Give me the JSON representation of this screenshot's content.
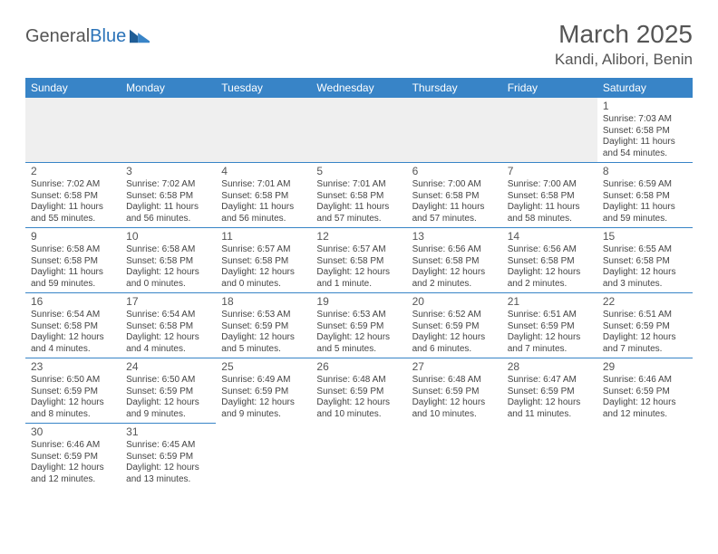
{
  "logo": {
    "text_a": "General",
    "text_b": "Blue"
  },
  "header": {
    "month_title": "March 2025",
    "location": "Kandi, Alibori, Benin"
  },
  "colors": {
    "header_bg": "#3884c7",
    "header_text": "#ffffff",
    "cell_border": "#3884c7",
    "blank_bg": "#efefef",
    "body_text": "#444444",
    "title_text": "#555555",
    "logo_blue": "#2b73b8"
  },
  "weekdays": [
    "Sunday",
    "Monday",
    "Tuesday",
    "Wednesday",
    "Thursday",
    "Friday",
    "Saturday"
  ],
  "weeks": [
    [
      null,
      null,
      null,
      null,
      null,
      null,
      {
        "n": "1",
        "sunrise": "Sunrise: 7:03 AM",
        "sunset": "Sunset: 6:58 PM",
        "daylight": "Daylight: 11 hours and 54 minutes."
      }
    ],
    [
      {
        "n": "2",
        "sunrise": "Sunrise: 7:02 AM",
        "sunset": "Sunset: 6:58 PM",
        "daylight": "Daylight: 11 hours and 55 minutes."
      },
      {
        "n": "3",
        "sunrise": "Sunrise: 7:02 AM",
        "sunset": "Sunset: 6:58 PM",
        "daylight": "Daylight: 11 hours and 56 minutes."
      },
      {
        "n": "4",
        "sunrise": "Sunrise: 7:01 AM",
        "sunset": "Sunset: 6:58 PM",
        "daylight": "Daylight: 11 hours and 56 minutes."
      },
      {
        "n": "5",
        "sunrise": "Sunrise: 7:01 AM",
        "sunset": "Sunset: 6:58 PM",
        "daylight": "Daylight: 11 hours and 57 minutes."
      },
      {
        "n": "6",
        "sunrise": "Sunrise: 7:00 AM",
        "sunset": "Sunset: 6:58 PM",
        "daylight": "Daylight: 11 hours and 57 minutes."
      },
      {
        "n": "7",
        "sunrise": "Sunrise: 7:00 AM",
        "sunset": "Sunset: 6:58 PM",
        "daylight": "Daylight: 11 hours and 58 minutes."
      },
      {
        "n": "8",
        "sunrise": "Sunrise: 6:59 AM",
        "sunset": "Sunset: 6:58 PM",
        "daylight": "Daylight: 11 hours and 59 minutes."
      }
    ],
    [
      {
        "n": "9",
        "sunrise": "Sunrise: 6:58 AM",
        "sunset": "Sunset: 6:58 PM",
        "daylight": "Daylight: 11 hours and 59 minutes."
      },
      {
        "n": "10",
        "sunrise": "Sunrise: 6:58 AM",
        "sunset": "Sunset: 6:58 PM",
        "daylight": "Daylight: 12 hours and 0 minutes."
      },
      {
        "n": "11",
        "sunrise": "Sunrise: 6:57 AM",
        "sunset": "Sunset: 6:58 PM",
        "daylight": "Daylight: 12 hours and 0 minutes."
      },
      {
        "n": "12",
        "sunrise": "Sunrise: 6:57 AM",
        "sunset": "Sunset: 6:58 PM",
        "daylight": "Daylight: 12 hours and 1 minute."
      },
      {
        "n": "13",
        "sunrise": "Sunrise: 6:56 AM",
        "sunset": "Sunset: 6:58 PM",
        "daylight": "Daylight: 12 hours and 2 minutes."
      },
      {
        "n": "14",
        "sunrise": "Sunrise: 6:56 AM",
        "sunset": "Sunset: 6:58 PM",
        "daylight": "Daylight: 12 hours and 2 minutes."
      },
      {
        "n": "15",
        "sunrise": "Sunrise: 6:55 AM",
        "sunset": "Sunset: 6:58 PM",
        "daylight": "Daylight: 12 hours and 3 minutes."
      }
    ],
    [
      {
        "n": "16",
        "sunrise": "Sunrise: 6:54 AM",
        "sunset": "Sunset: 6:58 PM",
        "daylight": "Daylight: 12 hours and 4 minutes."
      },
      {
        "n": "17",
        "sunrise": "Sunrise: 6:54 AM",
        "sunset": "Sunset: 6:58 PM",
        "daylight": "Daylight: 12 hours and 4 minutes."
      },
      {
        "n": "18",
        "sunrise": "Sunrise: 6:53 AM",
        "sunset": "Sunset: 6:59 PM",
        "daylight": "Daylight: 12 hours and 5 minutes."
      },
      {
        "n": "19",
        "sunrise": "Sunrise: 6:53 AM",
        "sunset": "Sunset: 6:59 PM",
        "daylight": "Daylight: 12 hours and 5 minutes."
      },
      {
        "n": "20",
        "sunrise": "Sunrise: 6:52 AM",
        "sunset": "Sunset: 6:59 PM",
        "daylight": "Daylight: 12 hours and 6 minutes."
      },
      {
        "n": "21",
        "sunrise": "Sunrise: 6:51 AM",
        "sunset": "Sunset: 6:59 PM",
        "daylight": "Daylight: 12 hours and 7 minutes."
      },
      {
        "n": "22",
        "sunrise": "Sunrise: 6:51 AM",
        "sunset": "Sunset: 6:59 PM",
        "daylight": "Daylight: 12 hours and 7 minutes."
      }
    ],
    [
      {
        "n": "23",
        "sunrise": "Sunrise: 6:50 AM",
        "sunset": "Sunset: 6:59 PM",
        "daylight": "Daylight: 12 hours and 8 minutes."
      },
      {
        "n": "24",
        "sunrise": "Sunrise: 6:50 AM",
        "sunset": "Sunset: 6:59 PM",
        "daylight": "Daylight: 12 hours and 9 minutes."
      },
      {
        "n": "25",
        "sunrise": "Sunrise: 6:49 AM",
        "sunset": "Sunset: 6:59 PM",
        "daylight": "Daylight: 12 hours and 9 minutes."
      },
      {
        "n": "26",
        "sunrise": "Sunrise: 6:48 AM",
        "sunset": "Sunset: 6:59 PM",
        "daylight": "Daylight: 12 hours and 10 minutes."
      },
      {
        "n": "27",
        "sunrise": "Sunrise: 6:48 AM",
        "sunset": "Sunset: 6:59 PM",
        "daylight": "Daylight: 12 hours and 10 minutes."
      },
      {
        "n": "28",
        "sunrise": "Sunrise: 6:47 AM",
        "sunset": "Sunset: 6:59 PM",
        "daylight": "Daylight: 12 hours and 11 minutes."
      },
      {
        "n": "29",
        "sunrise": "Sunrise: 6:46 AM",
        "sunset": "Sunset: 6:59 PM",
        "daylight": "Daylight: 12 hours and 12 minutes."
      }
    ],
    [
      {
        "n": "30",
        "sunrise": "Sunrise: 6:46 AM",
        "sunset": "Sunset: 6:59 PM",
        "daylight": "Daylight: 12 hours and 12 minutes."
      },
      {
        "n": "31",
        "sunrise": "Sunrise: 6:45 AM",
        "sunset": "Sunset: 6:59 PM",
        "daylight": "Daylight: 12 hours and 13 minutes."
      },
      null,
      null,
      null,
      null,
      null
    ]
  ]
}
